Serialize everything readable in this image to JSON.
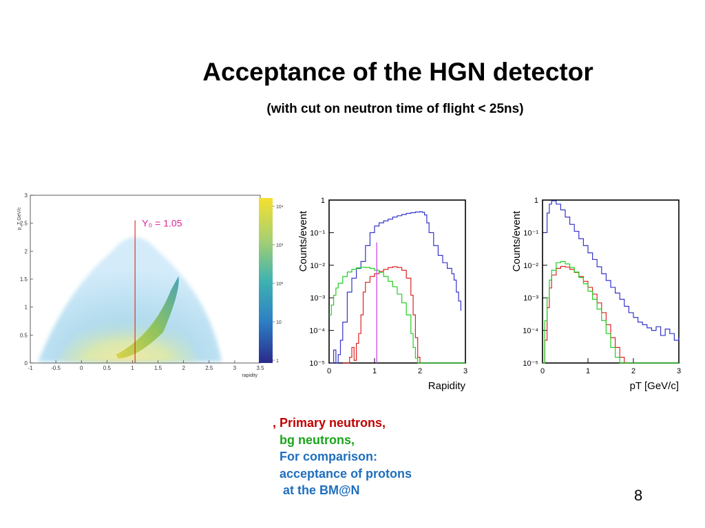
{
  "slide": {
    "title": "Acceptance of the HGN detector",
    "subtitle": "(with cut on neutron time of flight < 25ns)",
    "page_number": "8",
    "legend": [
      {
        "text": ", Primary neutrons,",
        "color": "#c00000"
      },
      {
        "text": "  bg neutrons,",
        "color": "#1aa51a"
      },
      {
        "text": "  For comparison:",
        "color": "#1f6fbf"
      },
      {
        "text": "  acceptance of protons",
        "color": "#1f6fbf"
      },
      {
        "text": "   at the BM@N",
        "color": "#1f6fbf"
      }
    ]
  },
  "chart_data": [
    {
      "type": "heatmap",
      "xlabel": "rapidity",
      "ylabel": "p_T GeV/c",
      "xlim": [
        -1,
        3.5
      ],
      "ylim": [
        0,
        3
      ],
      "x_ticks": [
        "-1",
        "-0.5",
        "0",
        "0.5",
        "1",
        "1.5",
        "2",
        "2.5",
        "3",
        "3.5"
      ],
      "y_ticks": [
        "0",
        "0.5",
        "1",
        "1.5",
        "2",
        "2.5",
        "3"
      ],
      "colorbar_ticks": [
        "1",
        "10",
        "10²",
        "10³",
        "10⁴"
      ],
      "annotation": {
        "text": "Y₀ = 1.05",
        "x": 1.05,
        "color": "#e0259a",
        "line_color": "#e03030"
      }
    },
    {
      "type": "line",
      "xlabel": "Rapidity",
      "ylabel": "Counts/event",
      "xlim": [
        0,
        3
      ],
      "ylim": [
        1e-05,
        1
      ],
      "log_y": true,
      "x_ticks": [
        "0",
        "1",
        "2",
        "3"
      ],
      "y_ticks": [
        "10⁻⁵",
        "10⁻⁴",
        "10⁻³",
        "10⁻²",
        "10⁻¹",
        "1"
      ],
      "vline": {
        "x": 1.05,
        "color": "#cc55ee"
      },
      "series": [
        {
          "color": "#3333cc",
          "x": [
            0.03,
            0.05,
            0.1,
            0.15,
            0.2,
            0.25,
            0.3,
            0.4,
            0.5,
            0.6,
            0.7,
            0.8,
            0.9,
            1.0,
            1.1,
            1.2,
            1.3,
            1.4,
            1.5,
            1.6,
            1.7,
            1.8,
            1.9,
            2.0,
            2.05,
            2.1,
            2.15,
            2.2,
            2.3,
            2.4,
            2.5,
            2.6,
            2.7,
            2.75,
            2.8,
            2.85,
            2.9
          ],
          "y": [
            1e-05,
            1e-05,
            2.5e-05,
            1e-05,
            1.8e-05,
            5e-05,
            0.00018,
            0.0015,
            0.004,
            0.008,
            0.013,
            0.04,
            0.1,
            0.16,
            0.2,
            0.23,
            0.26,
            0.3,
            0.33,
            0.36,
            0.39,
            0.41,
            0.43,
            0.44,
            0.42,
            0.35,
            0.2,
            0.1,
            0.04,
            0.02,
            0.012,
            0.008,
            0.0055,
            0.0035,
            0.0015,
            0.0008,
            0.0004
          ]
        },
        {
          "color": "#dd2222",
          "x": [
            0.3,
            0.4,
            0.45,
            0.5,
            0.55,
            0.6,
            0.65,
            0.7,
            0.75,
            0.8,
            0.9,
            1.0,
            1.1,
            1.2,
            1.3,
            1.4,
            1.5,
            1.6,
            1.7,
            1.8,
            1.85,
            1.9,
            1.95,
            2.0
          ],
          "y": [
            1e-05,
            1e-05,
            1.5e-05,
            3e-05,
            1.2e-05,
            4e-05,
            8e-05,
            0.0003,
            0.0015,
            0.003,
            0.0045,
            0.0055,
            0.0065,
            0.0075,
            0.0085,
            0.009,
            0.0085,
            0.007,
            0.004,
            0.0012,
            0.0003,
            6e-05,
            1.5e-05,
            1e-05
          ]
        },
        {
          "color": "#22cc22",
          "x": [
            0.0,
            0.05,
            0.1,
            0.15,
            0.2,
            0.3,
            0.4,
            0.5,
            0.6,
            0.7,
            0.8,
            0.9,
            1.0,
            1.1,
            1.2,
            1.3,
            1.4,
            1.5,
            1.6,
            1.7,
            1.8,
            1.85,
            1.9,
            1.95,
            2.0,
            2.5,
            3.0
          ],
          "y": [
            0.0003,
            0.0006,
            0.0012,
            0.002,
            0.0028,
            0.0045,
            0.0062,
            0.0075,
            0.0083,
            0.0087,
            0.0085,
            0.008,
            0.007,
            0.006,
            0.0045,
            0.0032,
            0.0022,
            0.0013,
            0.0007,
            0.0003,
            8e-05,
            3e-05,
            1.4e-05,
            1e-05,
            1e-05,
            1e-05,
            1e-05
          ]
        }
      ]
    },
    {
      "type": "line",
      "xlabel": "pT [GeV/c]",
      "ylabel": "Counts/event",
      "xlim": [
        0,
        3
      ],
      "ylim": [
        1e-05,
        1
      ],
      "log_y": true,
      "x_ticks": [
        "0",
        "1",
        "2",
        "3"
      ],
      "y_ticks": [
        "10⁻⁵",
        "10⁻⁴",
        "10⁻³",
        "10⁻²",
        "10⁻¹",
        "1"
      ],
      "series": [
        {
          "color": "#3333cc",
          "x": [
            0.05,
            0.1,
            0.15,
            0.2,
            0.3,
            0.4,
            0.5,
            0.6,
            0.7,
            0.8,
            0.9,
            1.0,
            1.1,
            1.2,
            1.3,
            1.4,
            1.5,
            1.6,
            1.7,
            1.8,
            1.9,
            2.0,
            2.1,
            2.2,
            2.3,
            2.4,
            2.5,
            2.6,
            2.7,
            2.8,
            2.9,
            3.0
          ],
          "y": [
            0.1,
            0.4,
            0.75,
            0.95,
            0.75,
            0.5,
            0.3,
            0.18,
            0.11,
            0.065,
            0.04,
            0.024,
            0.015,
            0.009,
            0.0055,
            0.0034,
            0.0021,
            0.0014,
            0.0009,
            0.00055,
            0.00035,
            0.00025,
            0.00018,
            0.00015,
            0.00012,
            0.0001,
            0.00013,
            7e-05,
            0.00011,
            8e-05,
            5e-05,
            6e-05
          ]
        },
        {
          "color": "#dd2222",
          "x": [
            0.0,
            0.05,
            0.1,
            0.15,
            0.2,
            0.3,
            0.4,
            0.5,
            0.6,
            0.7,
            0.8,
            0.9,
            1.0,
            1.1,
            1.2,
            1.3,
            1.4,
            1.5,
            1.6,
            1.7,
            1.8,
            1.9
          ],
          "y": [
            1e-05,
            5e-05,
            0.0005,
            0.002,
            0.005,
            0.008,
            0.0092,
            0.0088,
            0.0075,
            0.006,
            0.0045,
            0.0032,
            0.0021,
            0.0013,
            0.0007,
            0.00035,
            0.00015,
            6e-05,
            3e-05,
            1.5e-05,
            1e-05,
            1e-05
          ]
        },
        {
          "color": "#22cc22",
          "x": [
            0.0,
            0.05,
            0.1,
            0.15,
            0.2,
            0.3,
            0.4,
            0.5,
            0.6,
            0.7,
            0.8,
            0.9,
            1.0,
            1.1,
            1.2,
            1.3,
            1.4,
            1.5,
            1.6,
            1.7,
            1.8,
            1.9,
            2.0,
            2.5,
            3.0
          ],
          "y": [
            1e-05,
            0.0002,
            0.001,
            0.0035,
            0.007,
            0.012,
            0.013,
            0.011,
            0.0085,
            0.0062,
            0.0042,
            0.0027,
            0.0016,
            0.0009,
            0.00045,
            0.0002,
            8e-05,
            3e-05,
            1.5e-05,
            1e-05,
            1e-05,
            1e-05,
            1e-05,
            1e-05,
            1e-05
          ]
        }
      ]
    }
  ]
}
